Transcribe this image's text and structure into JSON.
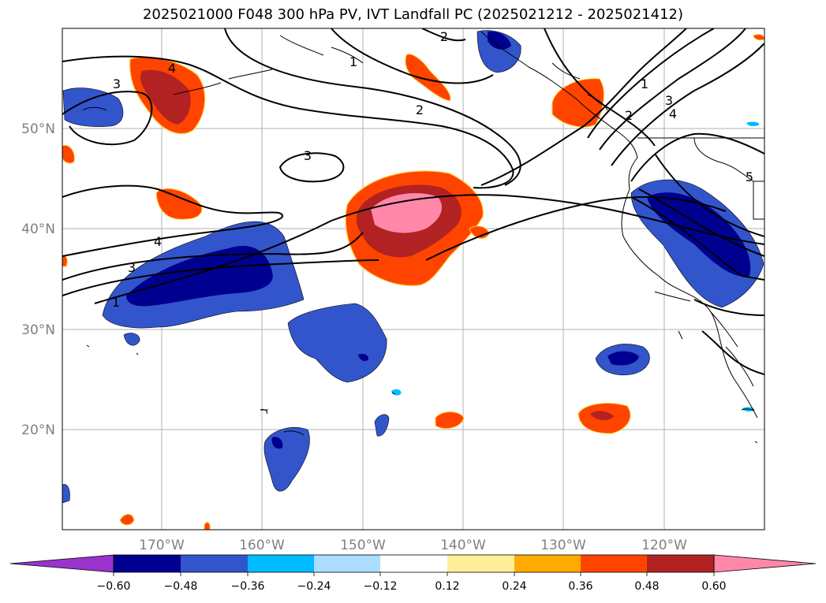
{
  "title": "2025021000 F048 300 hPa PV, IVT Landfall PC (2025021212 - 2025021412)",
  "lat_labels": [
    "50°N",
    "40°N",
    "30°N",
    "20°N"
  ],
  "lon_labels": [
    "170°W",
    "160°W",
    "150°W",
    "140°W",
    "130°W",
    "120°W"
  ],
  "colorbar": {
    "tick_labels": [
      "−0.60",
      "−0.48",
      "−0.36",
      "−0.24",
      "−0.12",
      "0.12",
      "0.24",
      "0.36",
      "0.48",
      "0.60"
    ],
    "colors": [
      "#9933cc",
      "#000090",
      "#3355cc",
      "#00bbff",
      "#aaddff",
      "#ffffff",
      "#ffee99",
      "#ffaa00",
      "#ff4400",
      "#b22222",
      "#ff88aa"
    ]
  },
  "contour_labels": [
    "1",
    "2",
    "3",
    "4",
    "5"
  ]
}
